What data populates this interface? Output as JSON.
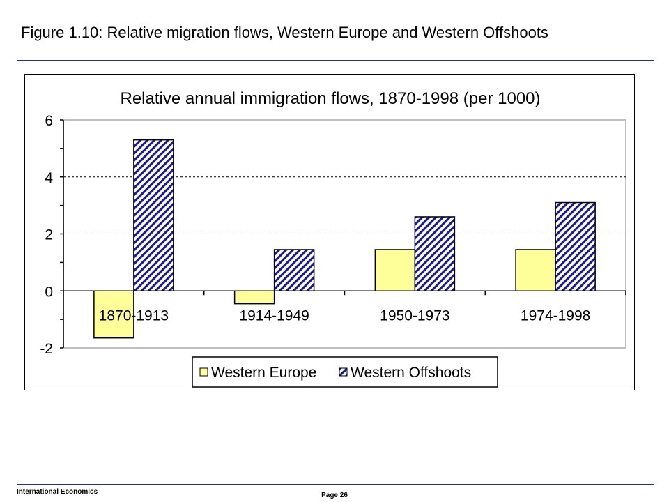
{
  "slide": {
    "title": "Figure 1.10: Relative migration flows, Western Europe and Western Offshoots",
    "footer_left": "International Economics",
    "footer_page": "Page 26"
  },
  "chart_data": {
    "type": "bar",
    "title": "Relative annual immigration flows, 1870-1998 (per 1000)",
    "xlabel": "",
    "ylabel": "",
    "categories": [
      "1870-1913",
      "1914-1949",
      "1950-1973",
      "1974-1998"
    ],
    "series": [
      {
        "name": "Western Europe",
        "values": [
          -1.65,
          -0.45,
          1.45,
          1.45
        ],
        "color": "#ffff99",
        "pattern": "solid"
      },
      {
        "name": "Western Offshoots",
        "values": [
          5.3,
          1.45,
          2.6,
          3.1
        ],
        "color": "#1a1a99",
        "pattern": "diagonal-hatch"
      }
    ],
    "ylim": [
      -2,
      6
    ],
    "yticks": [
      -2,
      0,
      2,
      4,
      6
    ],
    "grid": "horizontal-dashed",
    "legend": "bottom"
  }
}
